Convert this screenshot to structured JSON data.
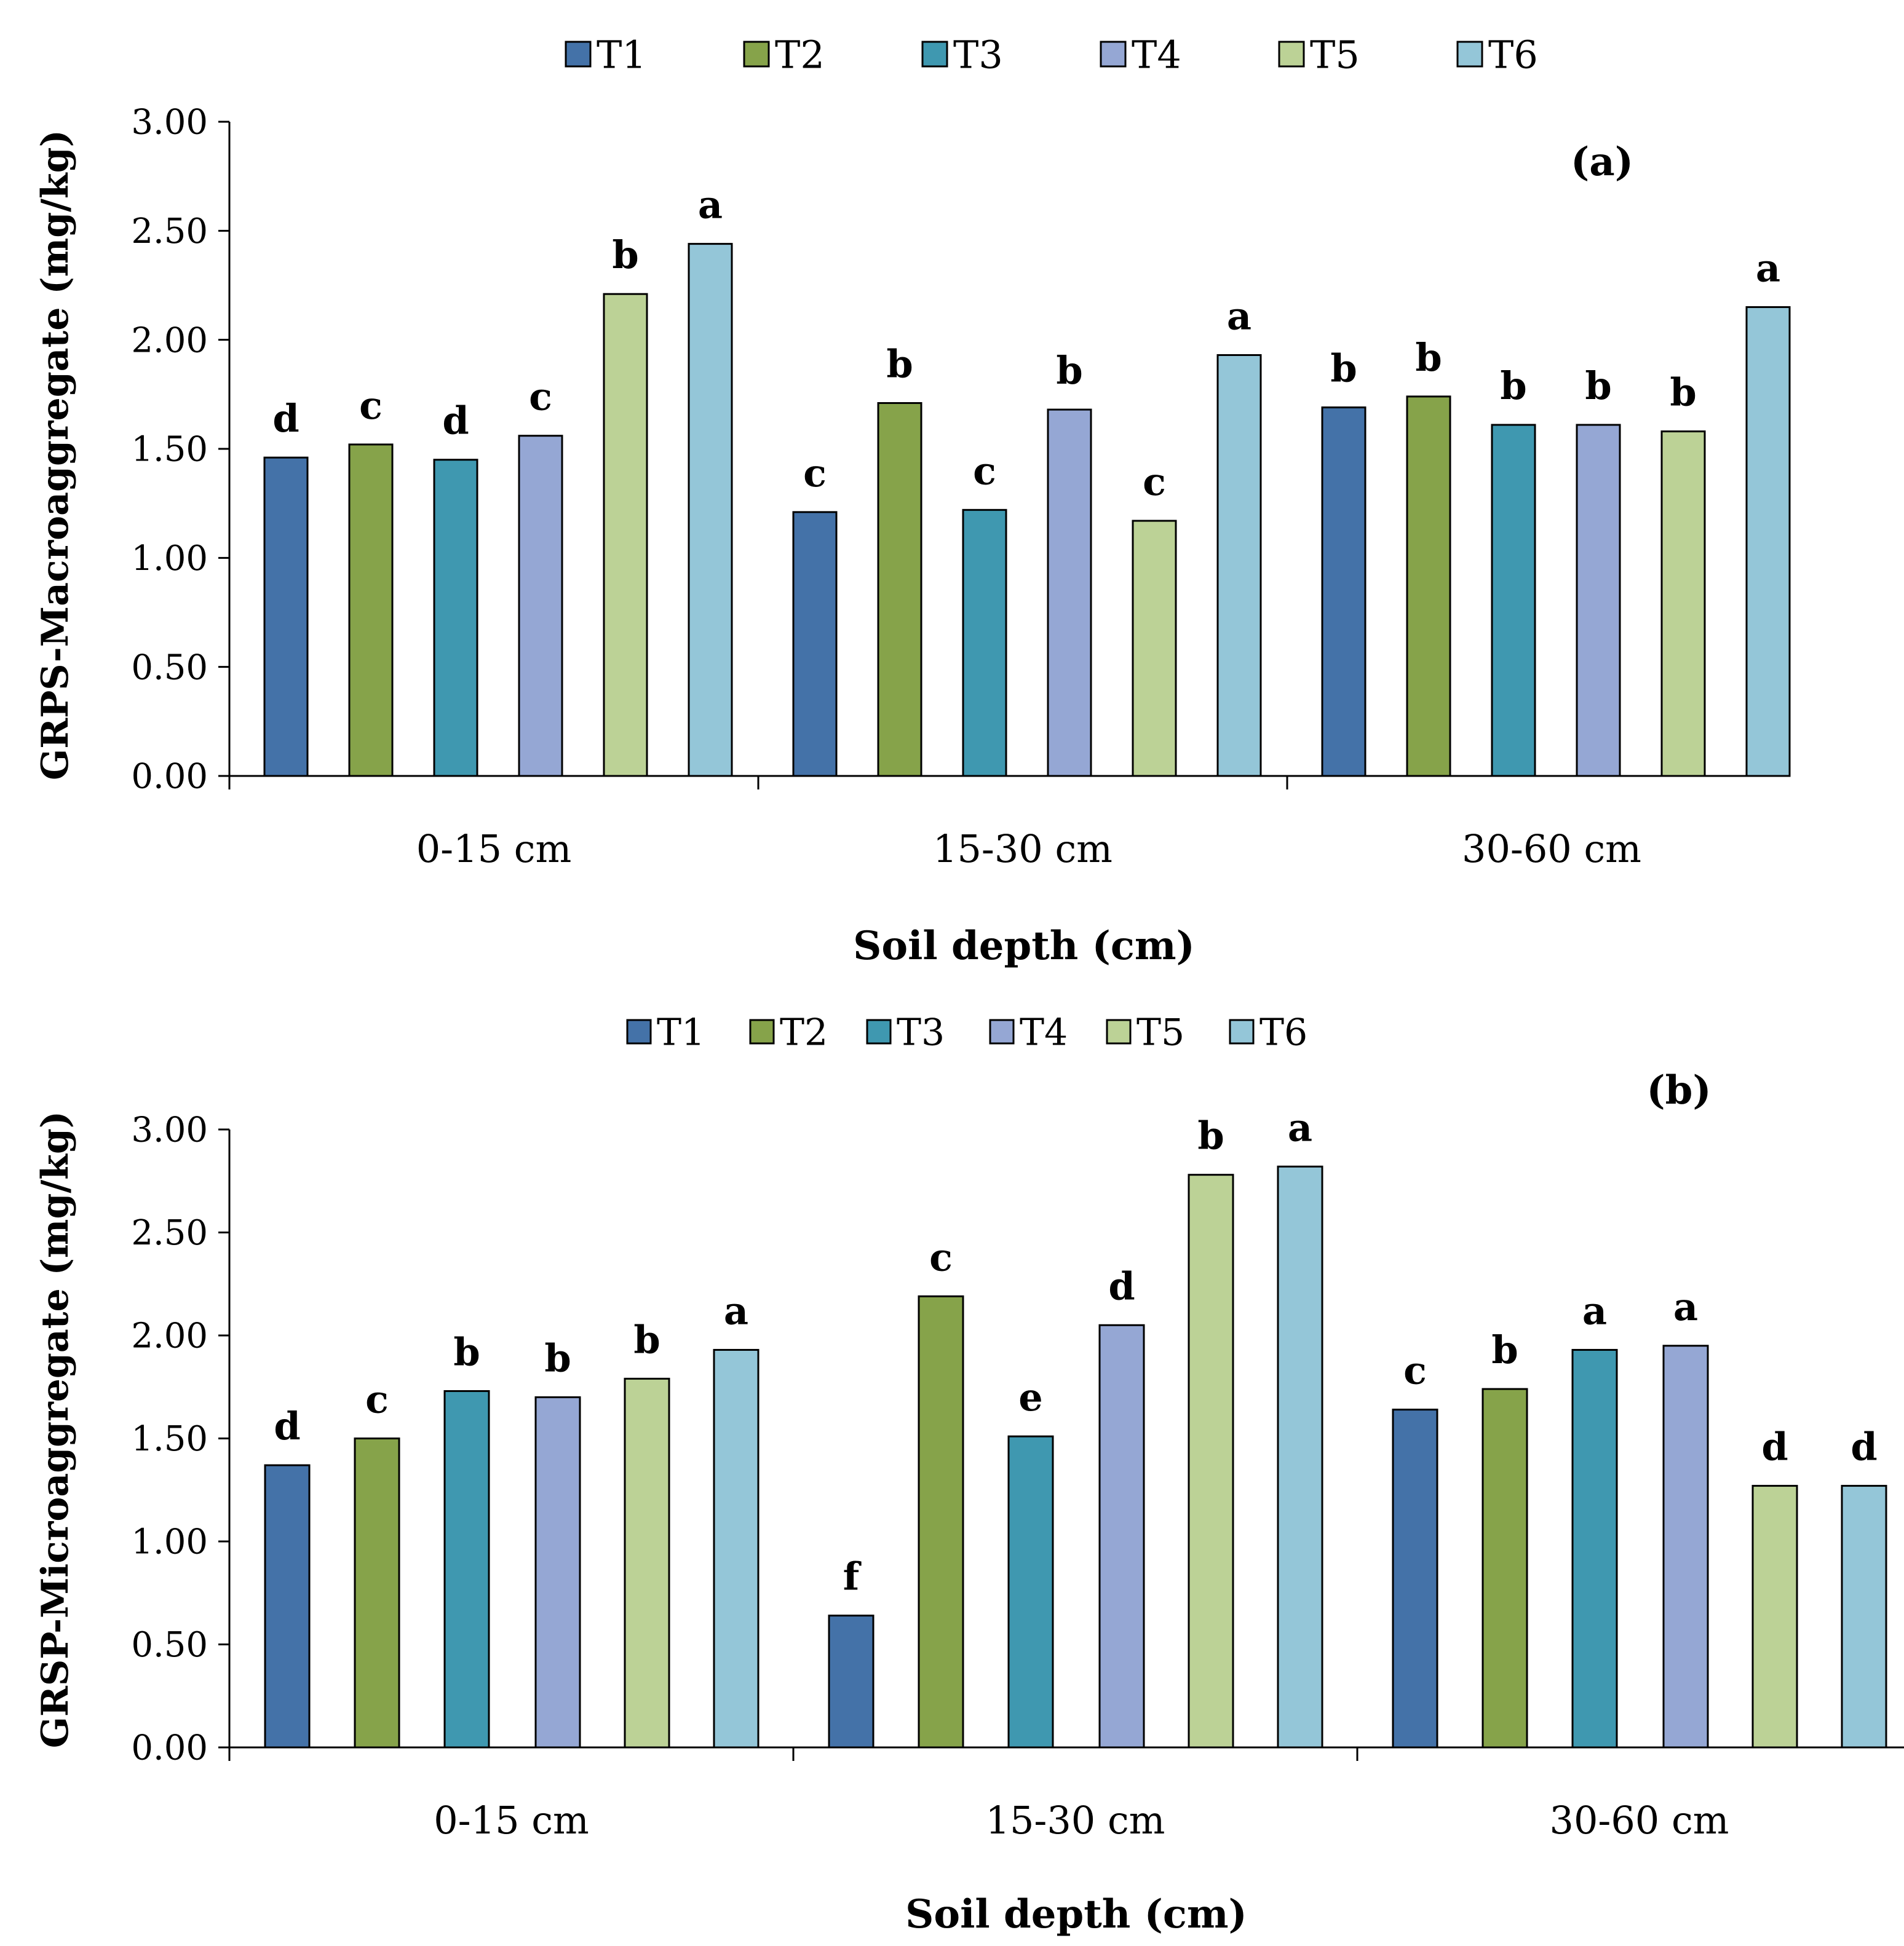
{
  "chart_data": [
    {
      "type": "bar",
      "panel_label": "(a)",
      "xlabel": "Soil depth (cm)",
      "ylabel": "GRPS-Macroaggregate (mg/kg)",
      "ylim": [
        0,
        3
      ],
      "yticks": [
        "0.00",
        "0.50",
        "1.00",
        "1.50",
        "2.00",
        "2.50",
        "3.00"
      ],
      "legend_position": "top",
      "categories": [
        "0-15 cm",
        "15-30 cm",
        "30-60 cm"
      ],
      "series": [
        {
          "name": "T1",
          "color": "#4472A8",
          "values": [
            1.46,
            1.21,
            1.69
          ],
          "labels": [
            "d",
            "c",
            "b"
          ]
        },
        {
          "name": "T2",
          "color": "#86A34A",
          "values": [
            1.52,
            1.71,
            1.74
          ],
          "labels": [
            "c",
            "b",
            "b"
          ]
        },
        {
          "name": "T3",
          "color": "#3F98B0",
          "values": [
            1.45,
            1.22,
            1.61
          ],
          "labels": [
            "d",
            "c",
            "b"
          ]
        },
        {
          "name": "T4",
          "color": "#95A7D4",
          "values": [
            1.56,
            1.68,
            1.61
          ],
          "labels": [
            "c",
            "b",
            "b"
          ]
        },
        {
          "name": "T5",
          "color": "#BCD296",
          "values": [
            2.21,
            1.17,
            1.58
          ],
          "labels": [
            "b",
            "c",
            "b"
          ]
        },
        {
          "name": "T6",
          "color": "#94C6D8",
          "values": [
            2.44,
            1.93,
            2.15
          ],
          "labels": [
            "a",
            "a",
            "a"
          ]
        }
      ]
    },
    {
      "type": "bar",
      "panel_label": "(b)",
      "xlabel": "Soil depth (cm)",
      "ylabel": "GRSP-Microaggregate (mg/kg)",
      "ylim": [
        0,
        3
      ],
      "yticks": [
        "0.00",
        "0.50",
        "1.00",
        "1.50",
        "2.00",
        "2.50",
        "3.00"
      ],
      "legend_position": "top",
      "categories": [
        "0-15 cm",
        "15-30 cm",
        "30-60 cm"
      ],
      "series": [
        {
          "name": "T1",
          "color": "#4472A8",
          "values": [
            1.37,
            0.64,
            1.64
          ],
          "labels": [
            "d",
            "f",
            "c"
          ]
        },
        {
          "name": "T2",
          "color": "#86A34A",
          "values": [
            1.5,
            2.19,
            1.74
          ],
          "labels": [
            "c",
            "c",
            "b"
          ]
        },
        {
          "name": "T3",
          "color": "#3F98B0",
          "values": [
            1.73,
            1.51,
            1.93
          ],
          "labels": [
            "b",
            "e",
            "a"
          ]
        },
        {
          "name": "T4",
          "color": "#95A7D4",
          "values": [
            1.7,
            2.05,
            1.95
          ],
          "labels": [
            "b",
            "d",
            "a"
          ]
        },
        {
          "name": "T5",
          "color": "#BCD296",
          "values": [
            1.79,
            2.78,
            1.27
          ],
          "labels": [
            "b",
            "b",
            "d"
          ]
        },
        {
          "name": "T6",
          "color": "#94C6D8",
          "values": [
            1.93,
            2.82,
            1.27
          ],
          "labels": [
            "a",
            "a",
            "d"
          ]
        }
      ]
    }
  ]
}
